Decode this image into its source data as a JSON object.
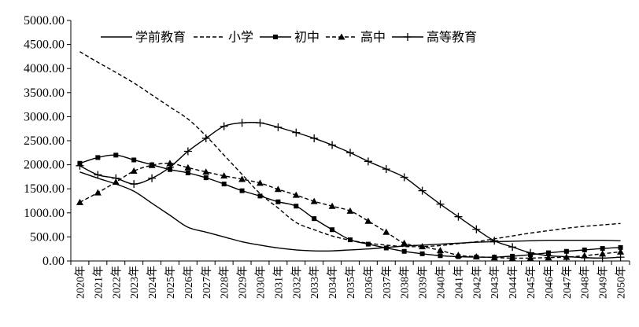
{
  "chart_data": {
    "type": "line",
    "title": "",
    "xlabel": "",
    "ylabel": "",
    "ylim": [
      0,
      5000
    ],
    "y_ticks": [
      "0.00",
      "500.00",
      "1000.00",
      "1500.00",
      "2000.00",
      "2500.00",
      "3000.00",
      "3500.00",
      "4000.00",
      "4500.00",
      "5000.00"
    ],
    "grid": false,
    "legend_position": "top",
    "categories": [
      "2020年",
      "2021年",
      "2022年",
      "2023年",
      "2024年",
      "2025年",
      "2026年",
      "2027年",
      "2028年",
      "2029年",
      "2030年",
      "2031年",
      "2032年",
      "2033年",
      "2034年",
      "2035年",
      "2036年",
      "2037年",
      "2038年",
      "2039年",
      "2040年",
      "2041年",
      "2042年",
      "2043年",
      "2044年",
      "2045年",
      "2046年",
      "2047年",
      "2048年",
      "2049年",
      "2050年"
    ],
    "series": [
      {
        "name": "学前教育",
        "style": "solid",
        "marker": "none",
        "values": [
          1850,
          1720,
          1600,
          1450,
          1200,
          950,
          700,
          600,
          500,
          400,
          330,
          270,
          230,
          210,
          210,
          230,
          250,
          280,
          310,
          330,
          350,
          370,
          390,
          400,
          410,
          420,
          430,
          430,
          430,
          430,
          420
        ]
      },
      {
        "name": "小学",
        "style": "dashed",
        "marker": "none",
        "values": [
          4350,
          4130,
          3920,
          3700,
          3450,
          3200,
          2950,
          2600,
          2200,
          1800,
          1400,
          1100,
          800,
          650,
          520,
          430,
          370,
          330,
          300,
          300,
          320,
          360,
          400,
          460,
          520,
          580,
          630,
          680,
          720,
          750,
          780
        ]
      },
      {
        "name": "初中",
        "style": "solid",
        "marker": "square",
        "values": [
          2030,
          2150,
          2200,
          2100,
          2000,
          1900,
          1830,
          1730,
          1600,
          1460,
          1350,
          1230,
          1140,
          880,
          650,
          440,
          350,
          270,
          200,
          150,
          110,
          90,
          80,
          80,
          100,
          130,
          170,
          200,
          230,
          260,
          280
        ]
      },
      {
        "name": "高中",
        "style": "dashed",
        "marker": "triangle",
        "values": [
          1220,
          1420,
          1640,
          1870,
          1990,
          2030,
          1940,
          1850,
          1770,
          1700,
          1620,
          1490,
          1370,
          1240,
          1140,
          1040,
          830,
          600,
          370,
          300,
          220,
          120,
          90,
          70,
          60,
          60,
          70,
          80,
          110,
          150,
          190
        ]
      },
      {
        "name": "高等教育",
        "style": "solid",
        "marker": "plus",
        "values": [
          1980,
          1790,
          1720,
          1600,
          1720,
          1950,
          2280,
          2550,
          2800,
          2870,
          2870,
          2780,
          2670,
          2550,
          2410,
          2250,
          2070,
          1910,
          1740,
          1460,
          1180,
          920,
          660,
          420,
          290,
          170,
          110,
          90,
          70,
          60,
          80
        ]
      }
    ]
  }
}
